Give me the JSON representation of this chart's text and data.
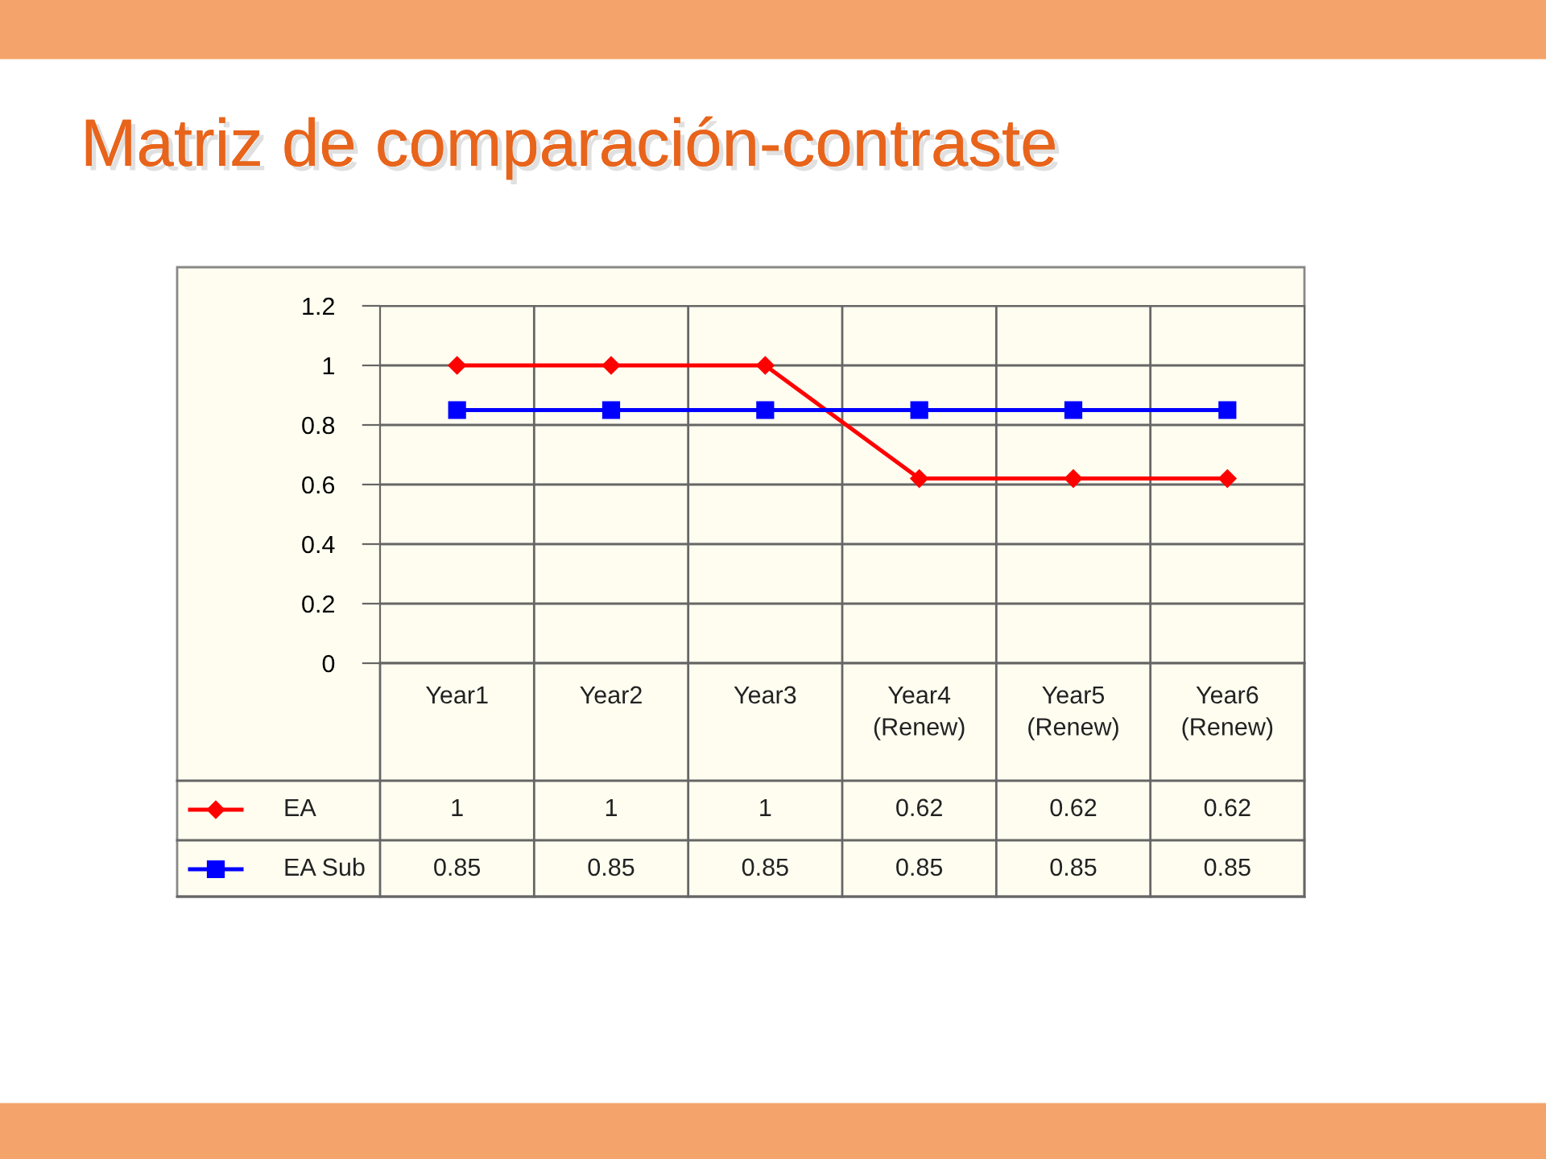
{
  "chart_data": {
    "type": "line",
    "title": "Matriz de comparación-contraste",
    "categories": [
      "Year1",
      "Year2",
      "Year3",
      "Year4\n(Renew)",
      "Year5\n(Renew)",
      "Year6\n(Renew)"
    ],
    "series": [
      {
        "name": "EA",
        "color": "#ff0000",
        "marker": "diamond",
        "values": [
          1,
          1,
          1,
          0.62,
          0.62,
          0.62
        ]
      },
      {
        "name": "EA Sub",
        "color": "#0000ff",
        "marker": "square",
        "values": [
          0.85,
          0.85,
          0.85,
          0.85,
          0.85,
          0.85
        ]
      }
    ],
    "ylim": [
      0,
      1.2
    ],
    "yticks": [
      0,
      0.2,
      0.4,
      0.6,
      0.8,
      1,
      1.2
    ],
    "grid": "y",
    "data_labels": true,
    "legend": "bottom left"
  }
}
